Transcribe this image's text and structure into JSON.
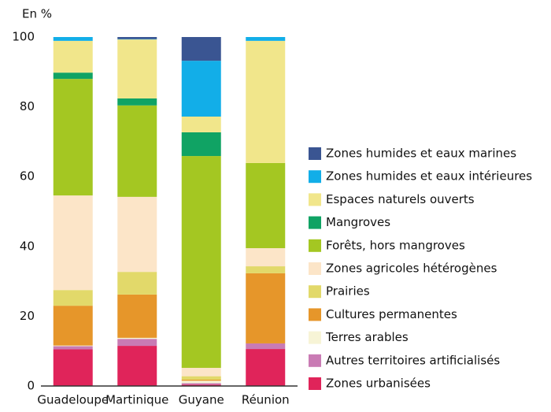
{
  "chart_data": {
    "type": "stacked-bar",
    "y_label": "En %",
    "categories": [
      "Guadeloupe",
      "Martinique",
      "Guyane",
      "Réunion"
    ],
    "series": [
      {
        "name": "Zones urbanisées",
        "color": "#e0245a",
        "values": [
          10.5,
          11.5,
          0.4,
          10.6
        ]
      },
      {
        "name": "Autres territoires artificialisés",
        "color": "#c97bb4",
        "values": [
          0.9,
          2,
          0.4,
          1.6
        ]
      },
      {
        "name": "Terres arables",
        "color": "#f7f4d6",
        "values": [
          0.2,
          0.3,
          0.7,
          0
        ]
      },
      {
        "name": "Cultures permanentes",
        "color": "#e6962a",
        "values": [
          11.4,
          12.4,
          0.3,
          20.1
        ]
      },
      {
        "name": "Prairies",
        "color": "#e2d96a",
        "values": [
          4.5,
          6.5,
          1,
          2
        ]
      },
      {
        "name": "Zones agricoles hétérogènes",
        "color": "#fce5c8",
        "values": [
          27.1,
          21.5,
          2.4,
          5.2
        ]
      },
      {
        "name": "Forêts, hors mangroves",
        "color": "#a4c722",
        "values": [
          33.4,
          26.2,
          60.7,
          24.4
        ]
      },
      {
        "name": "Mangroves",
        "color": "#10a364",
        "values": [
          1.8,
          2,
          6.8,
          0
        ]
      },
      {
        "name": "Espaces naturels ouverts",
        "color": "#f1e68b",
        "values": [
          9.1,
          16.9,
          4.5,
          35
        ]
      },
      {
        "name": "Zones humides et eaux intérieures",
        "color": "#12aee8",
        "values": [
          1.1,
          0.1,
          16,
          1.1
        ]
      },
      {
        "name": "Zones humides et eaux marines",
        "color": "#3a5592",
        "values": [
          0,
          0.6,
          6.8,
          0
        ]
      }
    ],
    "ylim": [
      0,
      100
    ],
    "yticks": [
      0,
      20,
      40,
      60,
      80,
      100
    ],
    "legend": "right"
  }
}
